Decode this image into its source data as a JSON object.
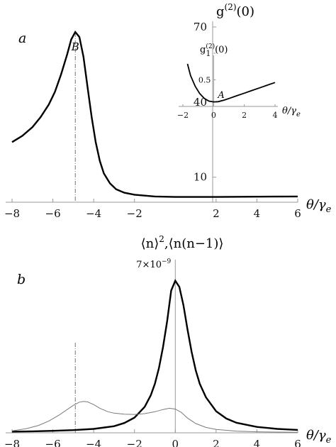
{
  "chart_data": [
    {
      "panel": "a",
      "type": "line",
      "title": "",
      "ylabel": "g^(2)(0)",
      "ylabel_parts": {
        "base": "g",
        "sup": "(2)",
        "tail": "(0)"
      },
      "xlabel": "θ/γe",
      "xlabel_parts": {
        "main": "θ/γ",
        "sub": "e"
      },
      "xlim": [
        -8,
        6
      ],
      "ylim": [
        0,
        70
      ],
      "x_ticks": [
        -8,
        -6,
        -4,
        -2,
        2,
        4,
        6
      ],
      "y_ticks": [
        10,
        40,
        70
      ],
      "marker_x": -4.9,
      "points": [
        {
          "label": "B",
          "x": -4.9,
          "y": 68
        }
      ],
      "series": [
        {
          "style": "thick",
          "x": [
            -8,
            -7.5,
            -7,
            -6.6,
            -6.2,
            -5.9,
            -5.6,
            -5.3,
            -5.1,
            -4.9,
            -4.7,
            -4.5,
            -4.3,
            -4.1,
            -3.9,
            -3.7,
            -3.5,
            -3.2,
            -2.9,
            -2.5,
            -2,
            -1,
            0,
            2,
            4,
            6
          ],
          "y": [
            24,
            26.5,
            30,
            34,
            39,
            44,
            51,
            59,
            65,
            68,
            66,
            58,
            46,
            34,
            24,
            16.5,
            11.5,
            7.5,
            5.2,
            3.8,
            3,
            2.3,
            2.1,
            2.1,
            2.2,
            2.3
          ]
        }
      ],
      "inset": {
        "ylabel": "g^(2)(0)",
        "ylabel_parts": {
          "base": "g",
          "sup": "(2)",
          "tail": "(0)"
        },
        "xlabel": "θ/γe",
        "xlabel_parts": {
          "main": "θ/γ",
          "sub": "e"
        },
        "xlim": [
          -2,
          4
        ],
        "ylim": [
          0,
          1.2
        ],
        "x_ticks": [
          -2,
          0,
          2,
          4
        ],
        "y_ticks": [
          0.5,
          1
        ],
        "points": [
          {
            "label": "A",
            "x": 0,
            "y": 0.08
          }
        ],
        "series": [
          {
            "style": "thick",
            "x": [
              -1.7,
              -1.5,
              -1.2,
              -0.9,
              -0.6,
              -0.3,
              0,
              0.3,
              0.7,
              1,
              1.5,
              2,
              2.5,
              3,
              3.5,
              4
            ],
            "y": [
              0.8,
              0.58,
              0.38,
              0.24,
              0.15,
              0.1,
              0.085,
              0.09,
              0.12,
              0.15,
              0.2,
              0.25,
              0.3,
              0.35,
              0.4,
              0.45
            ]
          }
        ]
      }
    },
    {
      "panel": "b",
      "type": "line",
      "title": "",
      "ylabel": "⟨n⟩², ⟨n(n−1)⟩",
      "ylabel_parts": {
        "left": "⟨n⟩",
        "sup": "2",
        "right": ",⟨n(n−1)⟩"
      },
      "xlabel": "θ/γe",
      "xlabel_parts": {
        "main": "θ/γ",
        "sub": "e"
      },
      "xlim": [
        -8,
        6
      ],
      "ylim": [
        0,
        7
      ],
      "x_ticks": [
        -8,
        -6,
        -4,
        -2,
        0,
        2,
        4,
        6
      ],
      "peak_label": "7×10⁻⁹",
      "peak_label_parts": {
        "base": "7×10",
        "sup": "−9"
      },
      "marker_x": -4.9,
      "series": [
        {
          "style": "thick",
          "x": [
            -8,
            -7,
            -6,
            -5,
            -4,
            -3,
            -2.5,
            -2,
            -1.5,
            -1.2,
            -1,
            -0.8,
            -0.6,
            -0.4,
            -0.2,
            0,
            0.2,
            0.4,
            0.6,
            0.8,
            1,
            1.2,
            1.5,
            2,
            2.5,
            3,
            4,
            5,
            6
          ],
          "y": [
            0.05,
            0.06,
            0.08,
            0.11,
            0.16,
            0.27,
            0.4,
            0.62,
            1.06,
            1.53,
            2.0,
            2.65,
            3.5,
            4.55,
            5.8,
            6.2,
            5.95,
            5.2,
            4.2,
            3.3,
            2.55,
            2.0,
            1.45,
            0.88,
            0.58,
            0.41,
            0.24,
            0.16,
            0.12
          ]
        },
        {
          "style": "thin",
          "x": [
            -8,
            -7.3,
            -6.7,
            -6.2,
            -5.7,
            -5.3,
            -5,
            -4.7,
            -4.5,
            -4.3,
            -4,
            -3.7,
            -3.3,
            -3,
            -2.5,
            -2,
            -1.5,
            -1,
            -0.6,
            -0.3,
            0,
            0.3,
            0.6,
            1,
            1.5,
            2,
            3,
            4,
            5,
            6
          ],
          "y": [
            0.08,
            0.17,
            0.3,
            0.48,
            0.72,
            0.95,
            1.12,
            1.25,
            1.28,
            1.26,
            1.15,
            1.0,
            0.86,
            0.8,
            0.76,
            0.75,
            0.78,
            0.86,
            0.95,
            1.0,
            0.97,
            0.83,
            0.6,
            0.38,
            0.22,
            0.14,
            0.07,
            0.04,
            0.03,
            0.02
          ]
        }
      ]
    }
  ]
}
